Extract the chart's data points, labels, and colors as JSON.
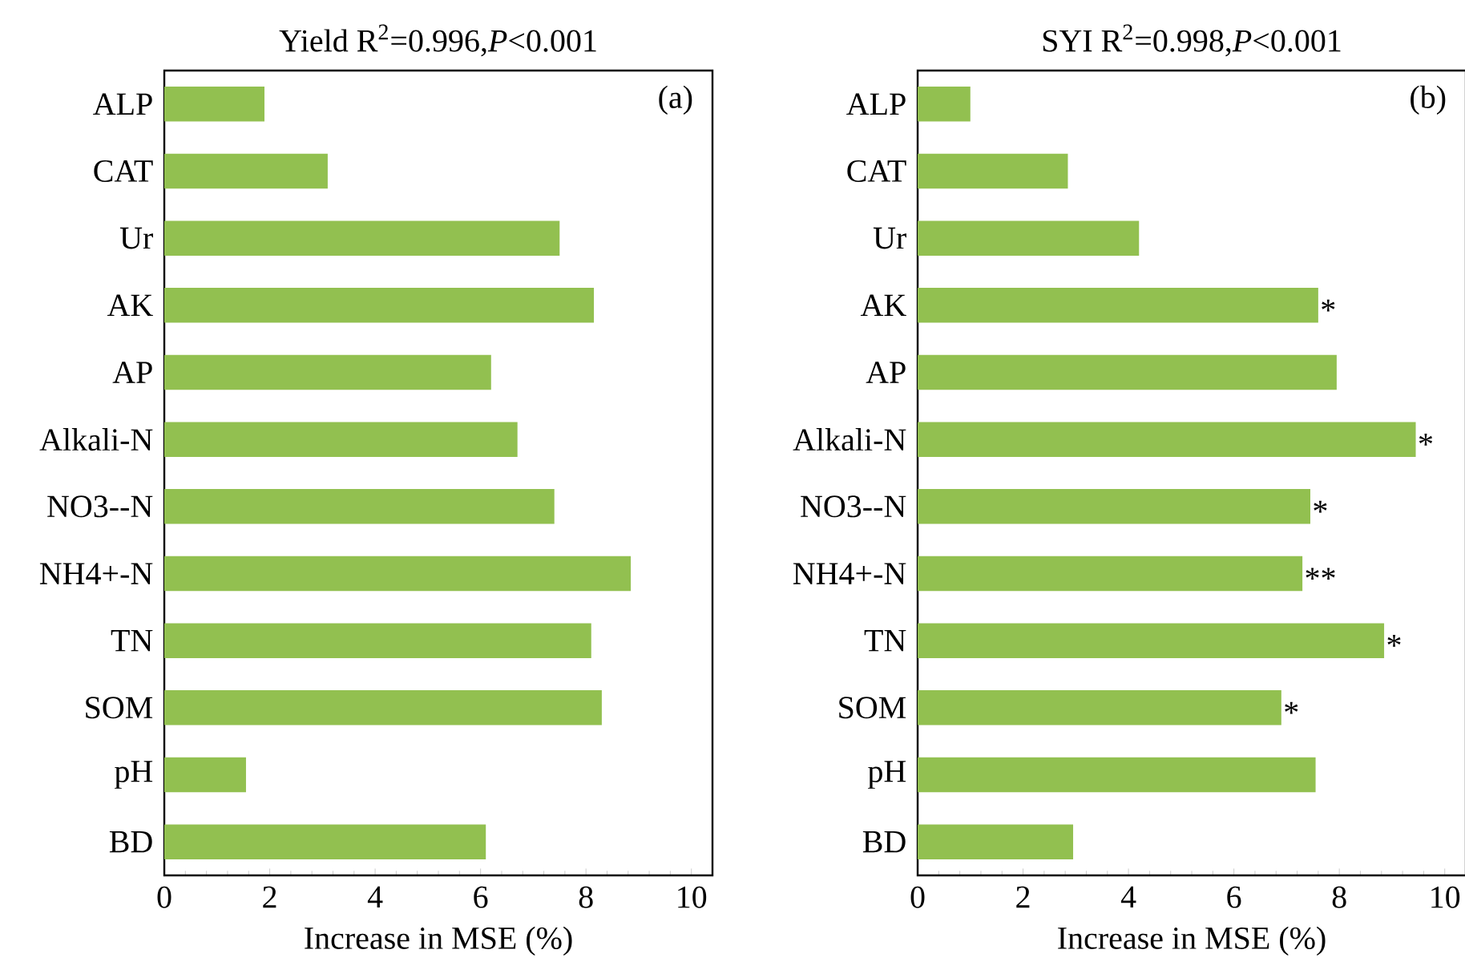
{
  "chart_data": [
    {
      "type": "bar",
      "orientation": "horizontal",
      "title": "Yield    R$^{2}$=0.996,*P*<0.001",
      "xlabel": "Increase in MSE (%)",
      "categories": [
        "ALP",
        "CAT",
        "Ur",
        "AK",
        "AP",
        "Alkali-N",
        "NO3--N",
        "NH4+-N",
        "TN",
        "SOM",
        "pH",
        "BD"
      ],
      "values": [
        1.9,
        3.1,
        7.5,
        8.15,
        6.2,
        6.7,
        7.4,
        8.85,
        8.1,
        8.3,
        1.55,
        6.1
      ],
      "color": "#92c050",
      "xlim": [
        0,
        10.4
      ],
      "xticks": [
        0,
        2,
        4,
        6,
        8,
        10
      ],
      "annotations": [
        "(a)"
      ]
    },
    {
      "type": "bar",
      "orientation": "horizontal",
      "title": "SYI    R$^{2}$=0.998,*P*<0.001",
      "xlabel": "Increase in MSE (%)",
      "categories": [
        "ALP",
        "CAT",
        "Ur",
        "AK",
        "AP",
        "Alkali-N",
        "NO3--N",
        "NH4+-N",
        "TN",
        "SOM",
        "pH",
        "BD"
      ],
      "values": [
        1.0,
        2.85,
        4.2,
        7.6,
        7.95,
        9.45,
        7.45,
        7.3,
        8.85,
        6.9,
        7.55,
        2.95
      ],
      "value_labels": [
        null,
        null,
        null,
        "*",
        null,
        "*",
        "*",
        "**",
        "*",
        "*",
        null,
        null
      ],
      "color": "#92c050",
      "xlim": [
        0,
        10.4
      ],
      "xticks": [
        0,
        2,
        4,
        6,
        8,
        10
      ],
      "annotations": [
        "(b)"
      ]
    }
  ]
}
